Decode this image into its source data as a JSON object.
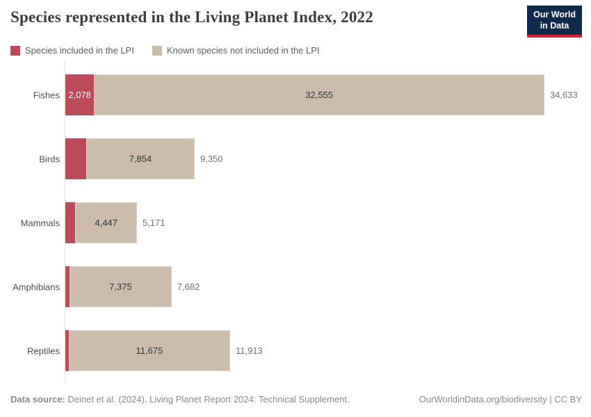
{
  "header": {
    "title": "Species represented in the Living Planet Index, 2022",
    "logo_line1": "Our World",
    "logo_line2": "in Data"
  },
  "legend": [
    {
      "label": "Species included in the LPI",
      "color": "#bd4a59"
    },
    {
      "label": "Known species not included in the LPI",
      "color": "#cbbcab"
    }
  ],
  "chart_data": {
    "type": "bar",
    "orientation": "horizontal",
    "stacked": true,
    "grid": false,
    "legend_position": "top",
    "title": "Species represented in the Living Planet Index, 2022",
    "categories": [
      "Fishes",
      "Birds",
      "Mammals",
      "Amphibians",
      "Reptiles"
    ],
    "series": [
      {
        "name": "Species included in the LPI",
        "color": "#bd4a59",
        "values": [
          2078,
          1496,
          724,
          307,
          238
        ]
      },
      {
        "name": "Known species not included in the LPI",
        "color": "#cbbcab",
        "values": [
          32555,
          7854,
          4447,
          7375,
          11675
        ]
      }
    ],
    "totals": [
      34633,
      9350,
      5171,
      7682,
      11913
    ],
    "segment_labels": {
      "included": [
        "2,078",
        "",
        "",
        "",
        ""
      ],
      "not_included": [
        "32,555",
        "7,854",
        "4,447",
        "7,375",
        "11,675"
      ]
    },
    "total_labels": [
      "34,633",
      "9,350",
      "5,171",
      "7,682",
      "11,913"
    ],
    "xlim": [
      0,
      34633
    ]
  },
  "footer": {
    "source_label": "Data source:",
    "source_text": " Deinet et al. (2024). Living Planet Report 2024: Technical Supplement.",
    "credit": "OurWorldinData.org/biodiversity | CC BY"
  },
  "colors": {
    "included": "#bd4a59",
    "not_included": "#cbbcab",
    "logo_navy": "#102a4e",
    "logo_red": "#d0232e",
    "axis": "#dedede"
  }
}
